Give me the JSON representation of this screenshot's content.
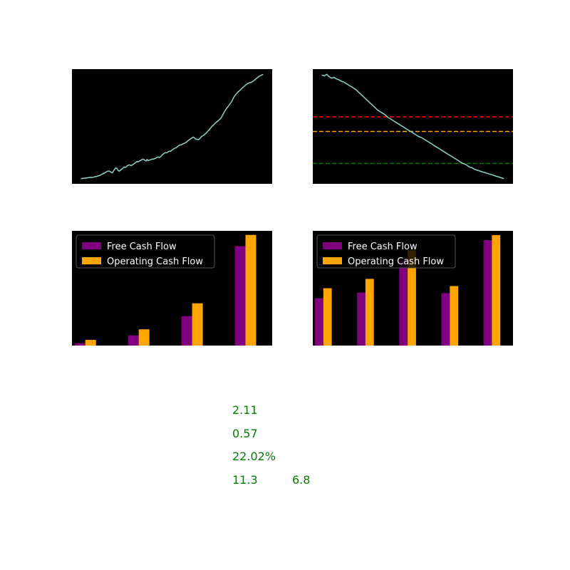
{
  "colors": {
    "background": "#000000",
    "price_line": "#8dd3c7",
    "free_cash_flow": "#800080",
    "operating_cash_flow": "#ffa500",
    "metric_text": "#008000",
    "level_red": "#ff0000",
    "level_orange": "#ffa500",
    "level_green": "#008000"
  },
  "chart_data": [
    {
      "type": "line",
      "series": [
        {
          "values": [
            4,
            3,
            6,
            5,
            8,
            9,
            7,
            10,
            13,
            12,
            15,
            16,
            18,
            17,
            20,
            18,
            17,
            18,
            21,
            24,
            28,
            27,
            30,
            32,
            38,
            36,
            40,
            44,
            48,
            52,
            58,
            62,
            70,
            68,
            76,
            82,
            85,
            92,
            95,
            100,
            98,
            96,
            92,
            86,
            76,
            80,
            88,
            105,
            118,
            130,
            138,
            135,
            122,
            110,
            100,
            98,
            104,
            112,
            120,
            126,
            131,
            140,
            150,
            146,
            145,
            152,
            162,
            168,
            172,
            176,
            174,
            170,
            168,
            172,
            178,
            184,
            190,
            196,
            204,
            210,
            218,
            212,
            216,
            220,
            226,
            230,
            236,
            240,
            246,
            248,
            244,
            238,
            230,
            226,
            236,
            244,
            230,
            232,
            236,
            240,
            242,
            244,
            250,
            252,
            248,
            252,
            256,
            262,
            266,
            270,
            274,
            276,
            270,
            272,
            278,
            288,
            298,
            306,
            314,
            322,
            326,
            330,
            328,
            330,
            336,
            342,
            348,
            350,
            346,
            352,
            360,
            366,
            372,
            378,
            384,
            388,
            392,
            396,
            404,
            412,
            418,
            424,
            430,
            428,
            430,
            436,
            440,
            444,
            448,
            452,
            458,
            462,
            470,
            478,
            486,
            492,
            498,
            506,
            510,
            516,
            522,
            526,
            520,
            512,
            504,
            500,
            498,
            496,
            494,
            498,
            506,
            516,
            526,
            536,
            540,
            546,
            552,
            560,
            566,
            574,
            584,
            592,
            604,
            612,
            620,
            632,
            644,
            656,
            664,
            672,
            680,
            690,
            700,
            708,
            714,
            722,
            728,
            738,
            744,
            752,
            760,
            772,
            788,
            804,
            822,
            838,
            854,
            866,
            880,
            894,
            904,
            916,
            926,
            940,
            952,
            964,
            978,
            996,
            1012,
            1030,
            1044,
            1056,
            1064,
            1076,
            1086,
            1096,
            1102,
            1110,
            1118,
            1128,
            1138,
            1144,
            1152,
            1160,
            1168,
            1176,
            1184,
            1190,
            1196,
            1202,
            1206,
            1210,
            1212,
            1214,
            1218,
            1222,
            1228,
            1234,
            1240,
            1248,
            1256,
            1264,
            1270,
            1278,
            1286,
            1292,
            1298,
            1302,
            1306,
            1310,
            1314,
            1318
          ]
        }
      ]
    },
    {
      "type": "line",
      "series": [
        {
          "values": [
            440,
            438,
            442,
            436,
            432,
            434,
            430,
            428,
            424,
            422,
            418,
            414,
            410,
            406,
            402,
            396,
            390,
            384,
            378,
            372,
            366,
            360,
            354,
            348,
            344,
            340,
            336,
            330,
            326,
            322,
            318,
            314,
            310,
            306,
            302,
            298,
            294,
            290,
            286,
            282,
            278,
            276,
            272,
            268,
            264,
            260,
            256,
            252,
            248,
            244,
            240,
            236,
            232,
            228,
            224,
            220,
            216,
            212,
            208,
            206,
            202,
            198,
            196,
            192,
            190,
            188,
            186,
            184,
            182,
            180,
            178,
            176,
            174,
            172,
            170,
            168
          ]
        }
      ],
      "hlines": [
        {
          "value": 330,
          "color": "#ff0000"
        },
        {
          "value": 292,
          "color": "#ffa500"
        },
        {
          "value": 208,
          "color": "#008000"
        }
      ]
    },
    {
      "type": "bar",
      "categories": [
        "",
        "",
        "",
        ""
      ],
      "series": [
        {
          "name": "Free Cash Flow",
          "values": [
            1.2,
            5.0,
            14.5,
            49.0
          ]
        },
        {
          "name": "Operating Cash Flow",
          "values": [
            2.8,
            8.0,
            20.8,
            54.5
          ]
        }
      ],
      "ylim": [
        0,
        56.5
      ],
      "legend": "top-left"
    },
    {
      "type": "bar",
      "categories": [
        "",
        "",
        "",
        "",
        ""
      ],
      "series": [
        {
          "name": "Free Cash Flow",
          "values": [
            33,
            37,
            60,
            36.5,
            73.5
          ]
        },
        {
          "name": "Operating Cash Flow",
          "values": [
            40,
            46.5,
            66.5,
            41.5,
            77
          ]
        }
      ],
      "ylim": [
        0,
        80
      ],
      "legend": "top-left"
    }
  ],
  "metrics": {
    "m1": "2.11",
    "m2": "0.57",
    "m3": "22.02%",
    "m4a": "11.3",
    "m4b": "6.8"
  }
}
